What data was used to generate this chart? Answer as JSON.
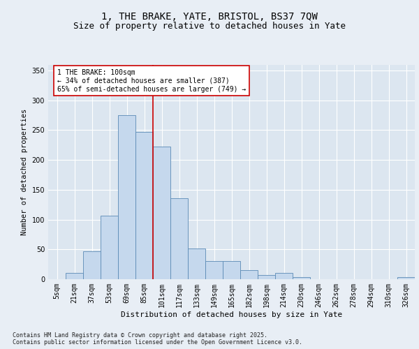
{
  "title_line1": "1, THE BRAKE, YATE, BRISTOL, BS37 7QW",
  "title_line2": "Size of property relative to detached houses in Yate",
  "xlabel": "Distribution of detached houses by size in Yate",
  "ylabel": "Number of detached properties",
  "categories": [
    "5sqm",
    "21sqm",
    "37sqm",
    "53sqm",
    "69sqm",
    "85sqm",
    "101sqm",
    "117sqm",
    "133sqm",
    "149sqm",
    "165sqm",
    "182sqm",
    "198sqm",
    "214sqm",
    "230sqm",
    "246sqm",
    "262sqm",
    "278sqm",
    "294sqm",
    "310sqm",
    "326sqm"
  ],
  "values": [
    0,
    10,
    47,
    106,
    275,
    247,
    222,
    136,
    52,
    30,
    30,
    15,
    7,
    10,
    4,
    0,
    0,
    0,
    0,
    0,
    3
  ],
  "bar_color": "#c5d8ed",
  "bar_edge_color": "#5a8ab5",
  "vline_color": "#cc0000",
  "vline_x": 5.5,
  "annotation_text": "1 THE BRAKE: 100sqm\n← 34% of detached houses are smaller (387)\n65% of semi-detached houses are larger (749) →",
  "annotation_box_facecolor": "#ffffff",
  "annotation_box_edgecolor": "#cc0000",
  "ylim": [
    0,
    360
  ],
  "yticks": [
    0,
    50,
    100,
    150,
    200,
    250,
    300,
    350
  ],
  "fig_facecolor": "#e8eef5",
  "plot_bg_color": "#dce6f0",
  "grid_color": "#ffffff",
  "footer_text": "Contains HM Land Registry data © Crown copyright and database right 2025.\nContains public sector information licensed under the Open Government Licence v3.0.",
  "title_fontsize": 10,
  "subtitle_fontsize": 9,
  "annot_fontsize": 7,
  "xlabel_fontsize": 8,
  "ylabel_fontsize": 7.5,
  "tick_fontsize": 7,
  "footer_fontsize": 6
}
